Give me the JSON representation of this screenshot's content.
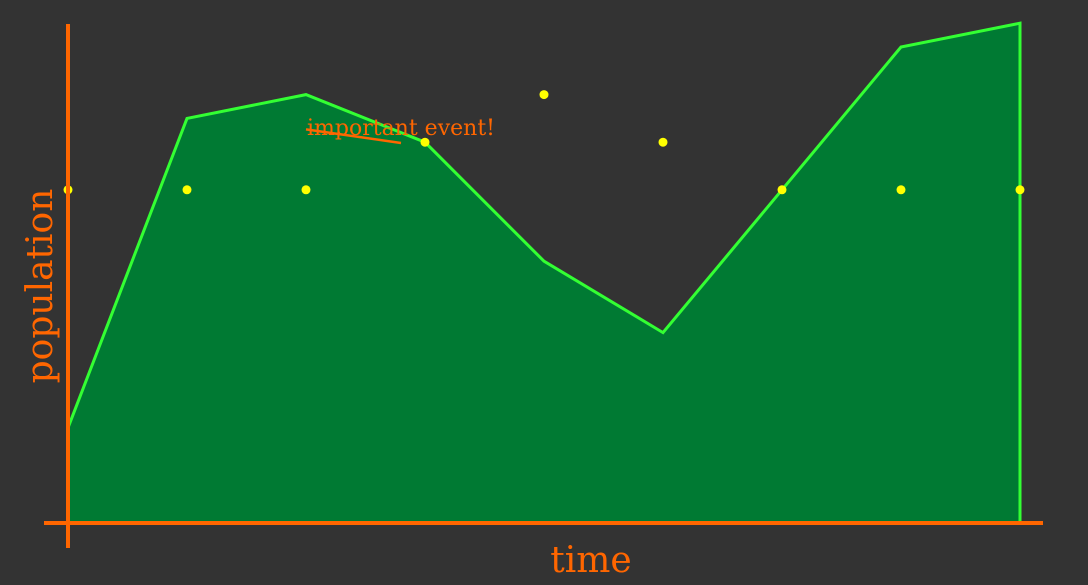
{
  "chart_data": {
    "type": "area",
    "title": "",
    "xlabel": "time",
    "ylabel": "population",
    "x": [
      0,
      1,
      2,
      3,
      4,
      5,
      6,
      7,
      8
    ],
    "xlim": [
      -0.2,
      8.2
    ],
    "ylim": [
      0,
      11
    ],
    "grid": false,
    "legend": "none",
    "series": [
      {
        "style": "area",
        "values": [
          2,
          8.5,
          9,
          8,
          5.5,
          4,
          7,
          10,
          10.5
        ]
      },
      {
        "style": "scatter",
        "values": [
          7,
          7,
          7,
          8,
          9,
          8,
          7,
          7,
          7
        ]
      }
    ],
    "annotations": [
      {
        "text": "important event!",
        "x": 2,
        "y": 8.5
      }
    ],
    "colors": {
      "background": "#333333",
      "axis": "#ff6600",
      "line": "#33ff33",
      "fill": "#007a33",
      "points": "#ffff00",
      "annotation": "#ff6600"
    }
  }
}
